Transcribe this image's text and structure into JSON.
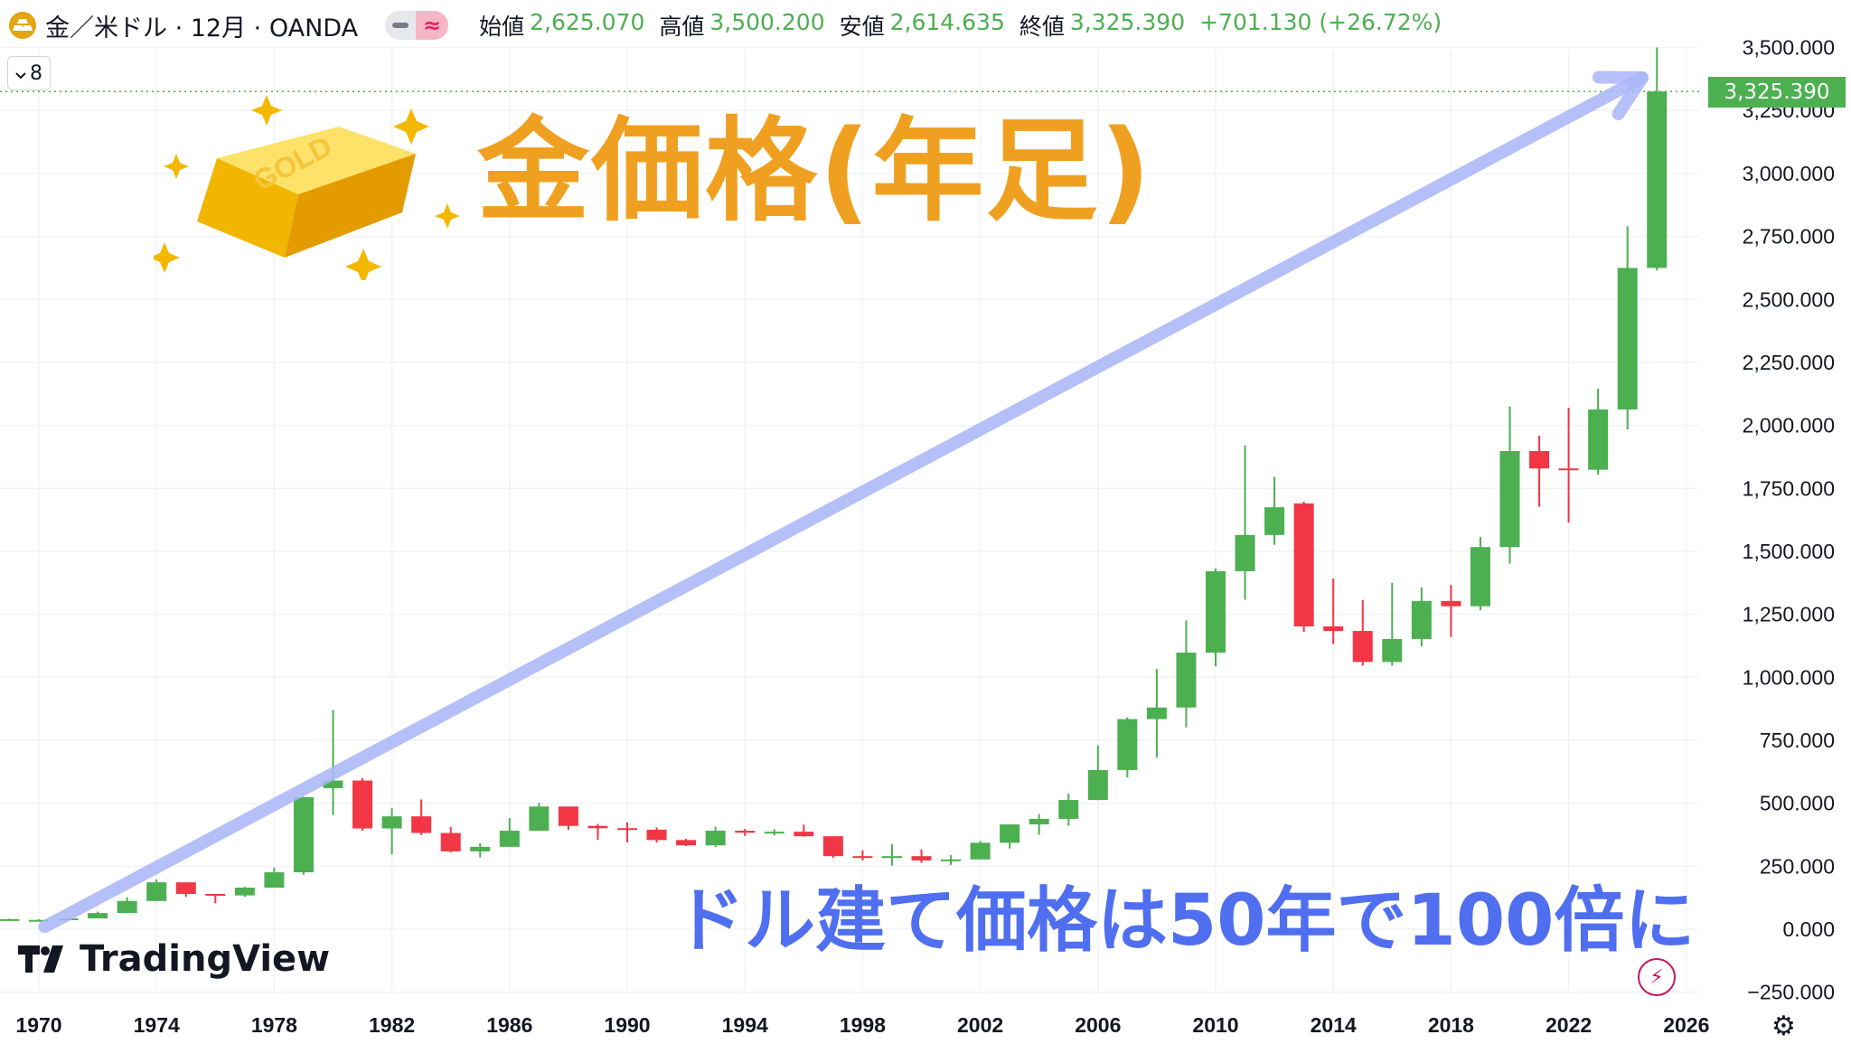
{
  "header": {
    "symbol": "金／米ドル · 12月 · OANDA",
    "mode_icon": "approx-icon",
    "ohlc": {
      "open_label": "始値",
      "open": "2,625.070",
      "high_label": "高値",
      "high": "3,500.200",
      "low_label": "安値",
      "low": "2,614.635",
      "close_label": "終値",
      "close": "3,325.390",
      "change": "+701.130 (+26.72%)"
    },
    "collapse_count": "8"
  },
  "overlay": {
    "title": "金価格(年足)",
    "bottom_note": "ドル建て価格は50年で100倍に",
    "gold_bar_text": "GOLD"
  },
  "branding": {
    "logo_text": "TradingView"
  },
  "price_badge": "3,325.390",
  "colors": {
    "up": "#4caf50",
    "down": "#f23645",
    "title": "#f0a020",
    "note": "#4f6ff0",
    "arrow": "#a9b6f8"
  },
  "chart_data": {
    "type": "candlestick",
    "interval": "12M",
    "x_tick_labels": [
      "1970",
      "1974",
      "1978",
      "1982",
      "1986",
      "1990",
      "1994",
      "1998",
      "2002",
      "2006",
      "2010",
      "2014",
      "2018",
      "2022",
      "2026"
    ],
    "y_tick_labels": [
      "3,500.000",
      "3,250.000",
      "3,000.000",
      "2,750.000",
      "2,500.000",
      "2,250.000",
      "2,000.000",
      "1,750.000",
      "1,500.000",
      "1,250.000",
      "1,000.000",
      "750.000",
      "500.000",
      "250.000",
      "0.000",
      "−250.000"
    ],
    "ylim": [
      -250,
      3500
    ],
    "xlim": [
      1969.5,
      2026.2
    ],
    "grid": true,
    "last_price_line": 3325.39,
    "trend_arrow": {
      "from": [
        1970.2,
        10
      ],
      "to": [
        2024.5,
        3380
      ]
    },
    "candles": [
      {
        "year": 1969,
        "o": 40,
        "h": 42,
        "l": 38,
        "c": 40
      },
      {
        "year": 1970,
        "o": 35,
        "h": 39,
        "l": 34,
        "c": 37
      },
      {
        "year": 1971,
        "o": 37,
        "h": 44,
        "l": 37,
        "c": 43
      },
      {
        "year": 1972,
        "o": 43,
        "h": 70,
        "l": 43,
        "c": 64
      },
      {
        "year": 1973,
        "o": 64,
        "h": 127,
        "l": 64,
        "c": 112
      },
      {
        "year": 1974,
        "o": 112,
        "h": 198,
        "l": 112,
        "c": 186
      },
      {
        "year": 1975,
        "o": 186,
        "h": 186,
        "l": 128,
        "c": 140
      },
      {
        "year": 1976,
        "o": 140,
        "h": 140,
        "l": 103,
        "c": 134
      },
      {
        "year": 1977,
        "o": 134,
        "h": 168,
        "l": 129,
        "c": 165
      },
      {
        "year": 1978,
        "o": 165,
        "h": 245,
        "l": 165,
        "c": 226
      },
      {
        "year": 1979,
        "o": 226,
        "h": 525,
        "l": 216,
        "c": 524
      },
      {
        "year": 1980,
        "o": 560,
        "h": 870,
        "l": 453,
        "c": 590
      },
      {
        "year": 1981,
        "o": 590,
        "h": 600,
        "l": 391,
        "c": 400
      },
      {
        "year": 1982,
        "o": 400,
        "h": 480,
        "l": 297,
        "c": 448
      },
      {
        "year": 1983,
        "o": 448,
        "h": 515,
        "l": 374,
        "c": 382
      },
      {
        "year": 1984,
        "o": 382,
        "h": 406,
        "l": 305,
        "c": 309
      },
      {
        "year": 1985,
        "o": 309,
        "h": 341,
        "l": 285,
        "c": 327
      },
      {
        "year": 1986,
        "o": 327,
        "h": 441,
        "l": 326,
        "c": 391
      },
      {
        "year": 1987,
        "o": 391,
        "h": 502,
        "l": 390,
        "c": 487
      },
      {
        "year": 1988,
        "o": 487,
        "h": 485,
        "l": 395,
        "c": 410
      },
      {
        "year": 1989,
        "o": 410,
        "h": 418,
        "l": 355,
        "c": 401
      },
      {
        "year": 1990,
        "o": 401,
        "h": 424,
        "l": 345,
        "c": 395
      },
      {
        "year": 1991,
        "o": 395,
        "h": 404,
        "l": 344,
        "c": 354
      },
      {
        "year": 1992,
        "o": 354,
        "h": 359,
        "l": 330,
        "c": 333
      },
      {
        "year": 1993,
        "o": 333,
        "h": 407,
        "l": 326,
        "c": 391
      },
      {
        "year": 1994,
        "o": 391,
        "h": 398,
        "l": 370,
        "c": 383
      },
      {
        "year": 1995,
        "o": 383,
        "h": 397,
        "l": 372,
        "c": 387
      },
      {
        "year": 1996,
        "o": 387,
        "h": 415,
        "l": 367,
        "c": 369
      },
      {
        "year": 1997,
        "o": 369,
        "h": 368,
        "l": 283,
        "c": 290
      },
      {
        "year": 1998,
        "o": 290,
        "h": 313,
        "l": 273,
        "c": 288
      },
      {
        "year": 1999,
        "o": 288,
        "h": 338,
        "l": 252,
        "c": 290
      },
      {
        "year": 2000,
        "o": 290,
        "h": 317,
        "l": 264,
        "c": 273
      },
      {
        "year": 2001,
        "o": 273,
        "h": 294,
        "l": 255,
        "c": 277
      },
      {
        "year": 2002,
        "o": 277,
        "h": 350,
        "l": 277,
        "c": 343
      },
      {
        "year": 2003,
        "o": 343,
        "h": 417,
        "l": 320,
        "c": 416
      },
      {
        "year": 2004,
        "o": 416,
        "h": 457,
        "l": 375,
        "c": 438
      },
      {
        "year": 2005,
        "o": 438,
        "h": 538,
        "l": 411,
        "c": 513
      },
      {
        "year": 2006,
        "o": 513,
        "h": 730,
        "l": 512,
        "c": 632
      },
      {
        "year": 2007,
        "o": 632,
        "h": 841,
        "l": 603,
        "c": 834
      },
      {
        "year": 2008,
        "o": 834,
        "h": 1033,
        "l": 681,
        "c": 880
      },
      {
        "year": 2009,
        "o": 880,
        "h": 1226,
        "l": 801,
        "c": 1098
      },
      {
        "year": 2010,
        "o": 1098,
        "h": 1432,
        "l": 1044,
        "c": 1421
      },
      {
        "year": 2011,
        "o": 1421,
        "h": 1920,
        "l": 1308,
        "c": 1565
      },
      {
        "year": 2012,
        "o": 1565,
        "h": 1796,
        "l": 1526,
        "c": 1675
      },
      {
        "year": 2013,
        "o": 1690,
        "h": 1697,
        "l": 1180,
        "c": 1202
      },
      {
        "year": 2014,
        "o": 1202,
        "h": 1392,
        "l": 1131,
        "c": 1184
      },
      {
        "year": 2015,
        "o": 1184,
        "h": 1307,
        "l": 1046,
        "c": 1061
      },
      {
        "year": 2016,
        "o": 1061,
        "h": 1375,
        "l": 1046,
        "c": 1152
      },
      {
        "year": 2017,
        "o": 1152,
        "h": 1357,
        "l": 1123,
        "c": 1303
      },
      {
        "year": 2018,
        "o": 1303,
        "h": 1366,
        "l": 1160,
        "c": 1282
      },
      {
        "year": 2019,
        "o": 1282,
        "h": 1557,
        "l": 1266,
        "c": 1517
      },
      {
        "year": 2020,
        "o": 1517,
        "h": 2075,
        "l": 1451,
        "c": 1898
      },
      {
        "year": 2021,
        "o": 1898,
        "h": 1959,
        "l": 1677,
        "c": 1829
      },
      {
        "year": 2022,
        "o": 1829,
        "h": 2070,
        "l": 1614,
        "c": 1824
      },
      {
        "year": 2023,
        "o": 1824,
        "h": 2146,
        "l": 1804,
        "c": 2063
      },
      {
        "year": 2024,
        "o": 2063,
        "h": 2790,
        "l": 1984,
        "c": 2625
      },
      {
        "year": 2025,
        "o": 2625.07,
        "h": 3500.2,
        "l": 2614.635,
        "c": 3325.39
      }
    ]
  }
}
